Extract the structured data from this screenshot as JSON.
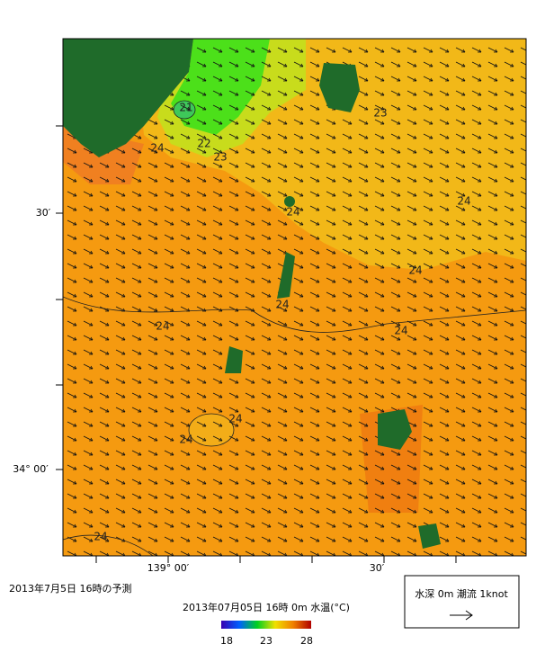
{
  "map": {
    "lat_labels": [
      "30′",
      "34° 00′"
    ],
    "lon_labels": [
      "139° 00′",
      "30′"
    ],
    "contour_labels": [
      "21",
      "22",
      "23",
      "24",
      "23",
      "24",
      "24",
      "24",
      "24",
      "24",
      "24",
      "24",
      "24",
      "24"
    ]
  },
  "caption": "2013年7月5日  16時の予測",
  "colorbar": {
    "title": "2013年07月05日 16時 0m 水温(°C)",
    "ticks": [
      "18",
      "23",
      "28"
    ]
  },
  "legend": {
    "text": "水深 0m 潮流 1knot"
  }
}
